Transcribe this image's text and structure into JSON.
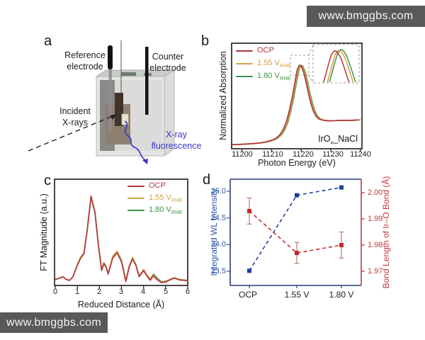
{
  "watermark": {
    "text": "www.bmggbs.com",
    "bg": "#59595b",
    "fg": "#f4f4f4"
  },
  "colors": {
    "ocp": "#b0393d",
    "v155": "#d2a04a",
    "v180": "#3e9347",
    "blue": "#2b55a8",
    "blue_marker": "#1e4199",
    "navy_frame": "#2a3c74",
    "red": "#c4393b",
    "red_marker": "#c02a2c",
    "errbar": "#c87f80",
    "fluor_blue": "#3b35c5"
  },
  "panels": {
    "a": {
      "letter": "a",
      "labels": {
        "reference": "Reference electrode",
        "counter": "Counter electrode",
        "incident": "Incident X-rays",
        "fluorescence": "X-ray fluorescence"
      }
    },
    "b": {
      "letter": "b",
      "ylabel": "Normalized Absorption",
      "xlabel": "Photon Energy (eV)",
      "x_ticks": [
        "11200",
        "11210",
        "11220",
        "11230",
        "11240"
      ],
      "sample_label": {
        "prefix": "IrO",
        "sub": "x",
        "suffix": "_NaCl"
      },
      "legend": [
        {
          "label": "OCP",
          "sub": ""
        },
        {
          "label": "1.55 V",
          "sub": "RHE"
        },
        {
          "label": "1.80 V",
          "sub": "RHE"
        }
      ]
    },
    "c": {
      "letter": "c",
      "ylabel": "FT Magnitude (a.u.)",
      "xlabel": "Reduced Distance (Å)",
      "x_ticks": [
        "0",
        "1",
        "2",
        "3",
        "4",
        "5",
        "6"
      ],
      "legend": [
        {
          "label": "OCP",
          "sub": ""
        },
        {
          "label": "1.55 V",
          "sub": "RHE"
        },
        {
          "label": "1.80 V",
          "sub": "RHE"
        }
      ]
    },
    "d": {
      "letter": "d",
      "left_ylabel": "Integrated WL Intensity",
      "right_ylabel": "Bond Length of Ir–O Bond (Å)",
      "left_ticks": [
        "25.0",
        "24.5",
        "24.0",
        "23.5"
      ],
      "right_ticks": [
        "2.00",
        "1.99",
        "1.98",
        "1.97"
      ],
      "x_labels": [
        "OCP",
        "1.55 V",
        "1.80 V"
      ]
    }
  },
  "chart_data": [
    {
      "panel": "b",
      "type": "line",
      "xlabel": "Photon Energy (eV)",
      "ylabel": "Normalized Absorption",
      "xlim": [
        11196.5,
        11240.5
      ],
      "x_tick_values": [
        11200,
        11210,
        11220,
        11230,
        11240
      ],
      "legend_position": "top-left",
      "inset": "zoom of white-line peak, top-right, dashed border",
      "sample": "IrOx_NaCl",
      "x": [
        11196.5,
        11200,
        11203,
        11206,
        11208,
        11210,
        11211.5,
        11213,
        11214,
        11215,
        11216,
        11217,
        11218,
        11218.7,
        11219.4,
        11220,
        11220.8,
        11221.6,
        11222.4,
        11223.2,
        11224,
        11225,
        11226,
        11227.5,
        11229,
        11231,
        11234,
        11237,
        11239.5
      ],
      "y": [
        0.02,
        0.04,
        0.06,
        0.09,
        0.13,
        0.2,
        0.28,
        0.45,
        0.65,
        0.95,
        1.4,
        1.95,
        2.62,
        3.05,
        3.22,
        3.18,
        2.95,
        2.55,
        2.1,
        1.7,
        1.4,
        1.16,
        1.05,
        1.0,
        0.98,
        0.99,
        1.0,
        1.0,
        1.02
      ],
      "series": [
        {
          "name": "OCP",
          "color_key": "ocp",
          "dx": 0,
          "inset_dx": 0,
          "inset_dv": 0
        },
        {
          "name": "1.55 V_RHE",
          "color_key": "v155",
          "dx": 0.35,
          "inset_dx": 0.9,
          "inset_dv": 0.02
        },
        {
          "name": "1.80 V_RHE",
          "color_key": "v180",
          "dx": 0.55,
          "inset_dx": 1.4,
          "inset_dv": 0.05
        }
      ]
    },
    {
      "panel": "c",
      "type": "line",
      "xlabel": "Reduced Distance (Å)",
      "ylabel": "FT Magnitude (a.u.)",
      "xlim": [
        0,
        6
      ],
      "x_tick_values": [
        0,
        1,
        2,
        3,
        4,
        5,
        6
      ],
      "legend_position": "top-right",
      "x": [
        0,
        0.2,
        0.35,
        0.5,
        0.65,
        0.8,
        1.0,
        1.15,
        1.3,
        1.45,
        1.62,
        1.8,
        1.95,
        2.1,
        2.2,
        2.3,
        2.4,
        2.6,
        2.8,
        3.0,
        3.2,
        3.35,
        3.5,
        3.65,
        3.8,
        4.0,
        4.15,
        4.3,
        4.45,
        4.6,
        4.8,
        5.0,
        5.2,
        5.4,
        5.6,
        5.8,
        6.0
      ],
      "series": [
        {
          "name": "OCP",
          "color_key": "ocp",
          "y": [
            0.06,
            0.075,
            0.09,
            0.06,
            0.05,
            0.09,
            0.22,
            0.3,
            0.35,
            0.62,
            1.0,
            0.82,
            0.45,
            0.16,
            0.24,
            0.2,
            0.12,
            0.3,
            0.36,
            0.26,
            0.035,
            0.2,
            0.29,
            0.22,
            0.09,
            0.16,
            0.1,
            0.05,
            0.1,
            0.06,
            0.025,
            0.03,
            0.055,
            0.075,
            0.055,
            0.05,
            0.045
          ]
        },
        {
          "name": "1.55 V_RHE",
          "color_key": "v155",
          "y": [
            0.06,
            0.075,
            0.09,
            0.06,
            0.05,
            0.09,
            0.23,
            0.31,
            0.36,
            0.63,
            1.0,
            0.82,
            0.46,
            0.17,
            0.25,
            0.21,
            0.13,
            0.32,
            0.38,
            0.28,
            0.05,
            0.21,
            0.31,
            0.23,
            0.1,
            0.17,
            0.11,
            0.06,
            0.11,
            0.07,
            0.03,
            0.035,
            0.06,
            0.08,
            0.06,
            0.055,
            0.05
          ]
        },
        {
          "name": "1.80 V_RHE",
          "color_key": "v180",
          "y": [
            0.06,
            0.075,
            0.09,
            0.06,
            0.05,
            0.09,
            0.23,
            0.31,
            0.36,
            0.62,
            0.99,
            0.81,
            0.46,
            0.17,
            0.25,
            0.21,
            0.13,
            0.31,
            0.37,
            0.27,
            0.05,
            0.21,
            0.3,
            0.23,
            0.1,
            0.17,
            0.11,
            0.065,
            0.12,
            0.08,
            0.035,
            0.04,
            0.06,
            0.08,
            0.06,
            0.055,
            0.05
          ]
        }
      ]
    },
    {
      "panel": "d",
      "type": "scatter-line",
      "categories": [
        "OCP",
        "1.55 V",
        "1.80 V"
      ],
      "left_axis": {
        "label": "Integrated WL Intensity",
        "ticks": [
          23.5,
          24.0,
          24.5,
          25.0
        ],
        "ylim": [
          23.23,
          25.23
        ]
      },
      "right_axis": {
        "label": "Bond Length of Ir–O Bond (Å)",
        "ticks": [
          1.97,
          1.98,
          1.99,
          2.0
        ],
        "ylim": [
          1.9646,
          2.0051
        ]
      },
      "series": [
        {
          "name": "Integrated WL Intensity",
          "axis": "left",
          "color_key": "blue_marker",
          "values": [
            23.51,
            24.95,
            25.1
          ],
          "errors": [
            0,
            0,
            0
          ],
          "line": "dashed",
          "marker": "square"
        },
        {
          "name": "Bond Length of Ir–O Bond",
          "axis": "right",
          "color_key": "red_marker",
          "values": [
            1.993,
            1.977,
            1.98
          ],
          "errors": [
            0.005,
            0.004,
            0.005
          ],
          "line": "dashed",
          "marker": "square"
        }
      ]
    }
  ]
}
